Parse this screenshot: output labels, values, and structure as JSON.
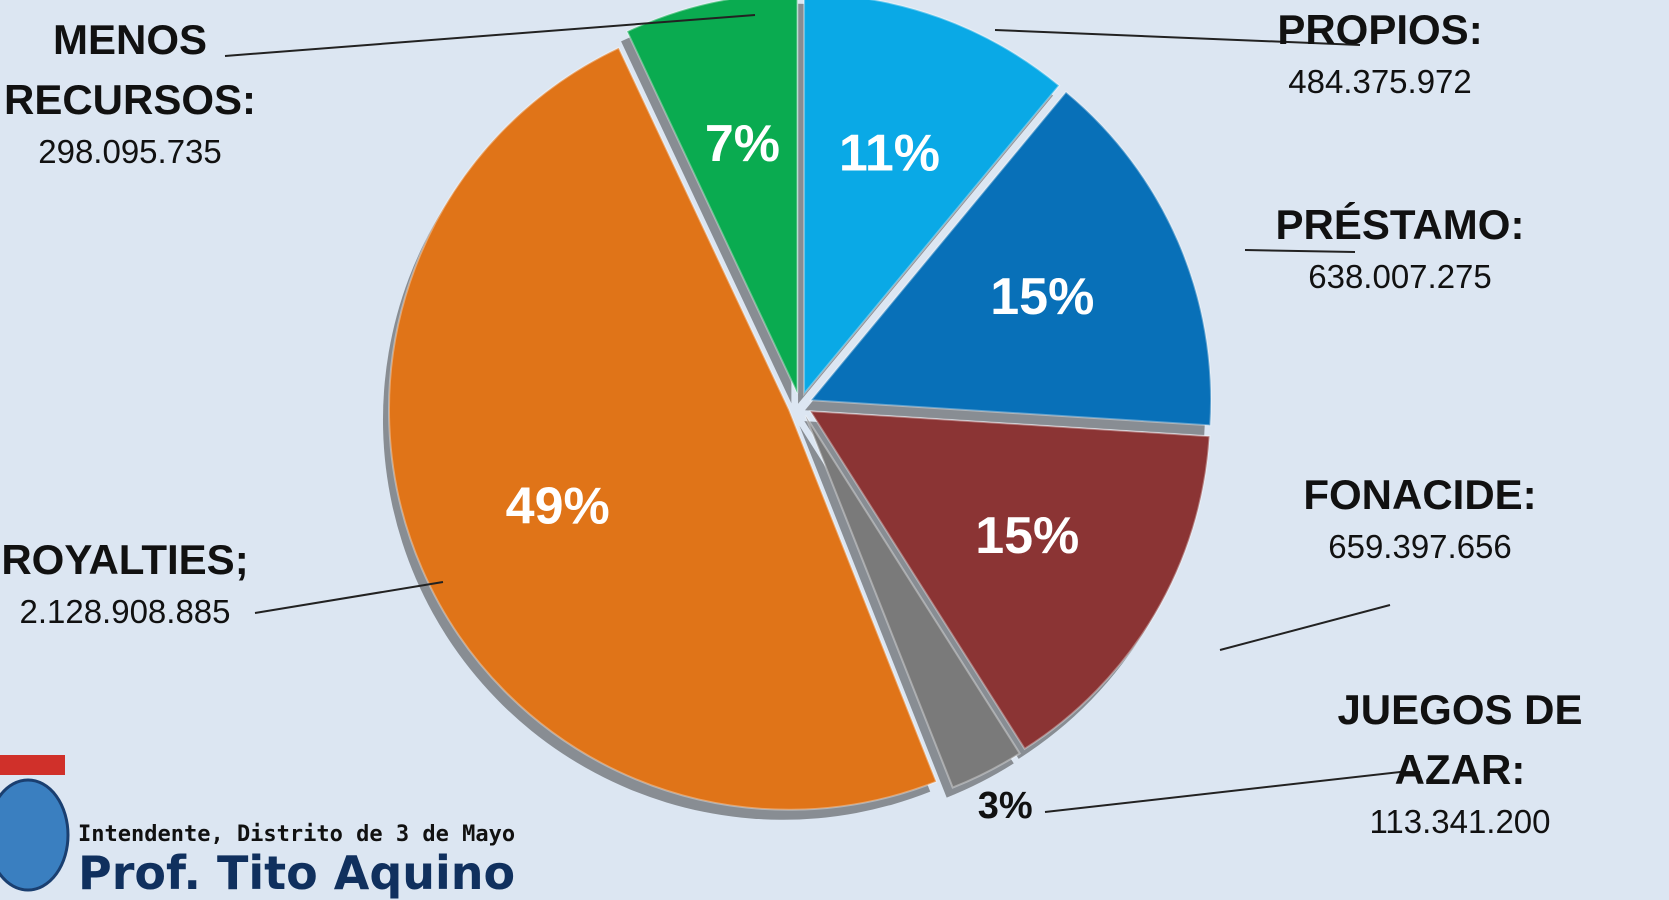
{
  "chart_data": {
    "type": "pie",
    "categories": [
      "PROPIOS:",
      "PRÉSTAMO:",
      "FONACIDE:",
      "JUEGOS DE AZAR:",
      "ROYALTIES;",
      "MENOS RECURSOS:"
    ],
    "values": [
      11,
      15,
      15,
      3,
      49,
      7
    ],
    "value_labels": [
      "11%",
      "15%",
      "15%",
      "3%",
      "49%",
      "7%"
    ],
    "amounts": [
      "484.375.972",
      "638.007.275",
      "659.397.656",
      "113.341.200",
      "2.128.908.885",
      "298.095.735"
    ],
    "colors": [
      "#0aa9e6",
      "#0870b8",
      "#8b3434",
      "#7a7a7a",
      "#e07418",
      "#0aab50"
    ]
  },
  "footer": {
    "subtitle": "Intendente, Distrito de 3 de Mayo",
    "name": "Prof. Tito Aquino"
  }
}
